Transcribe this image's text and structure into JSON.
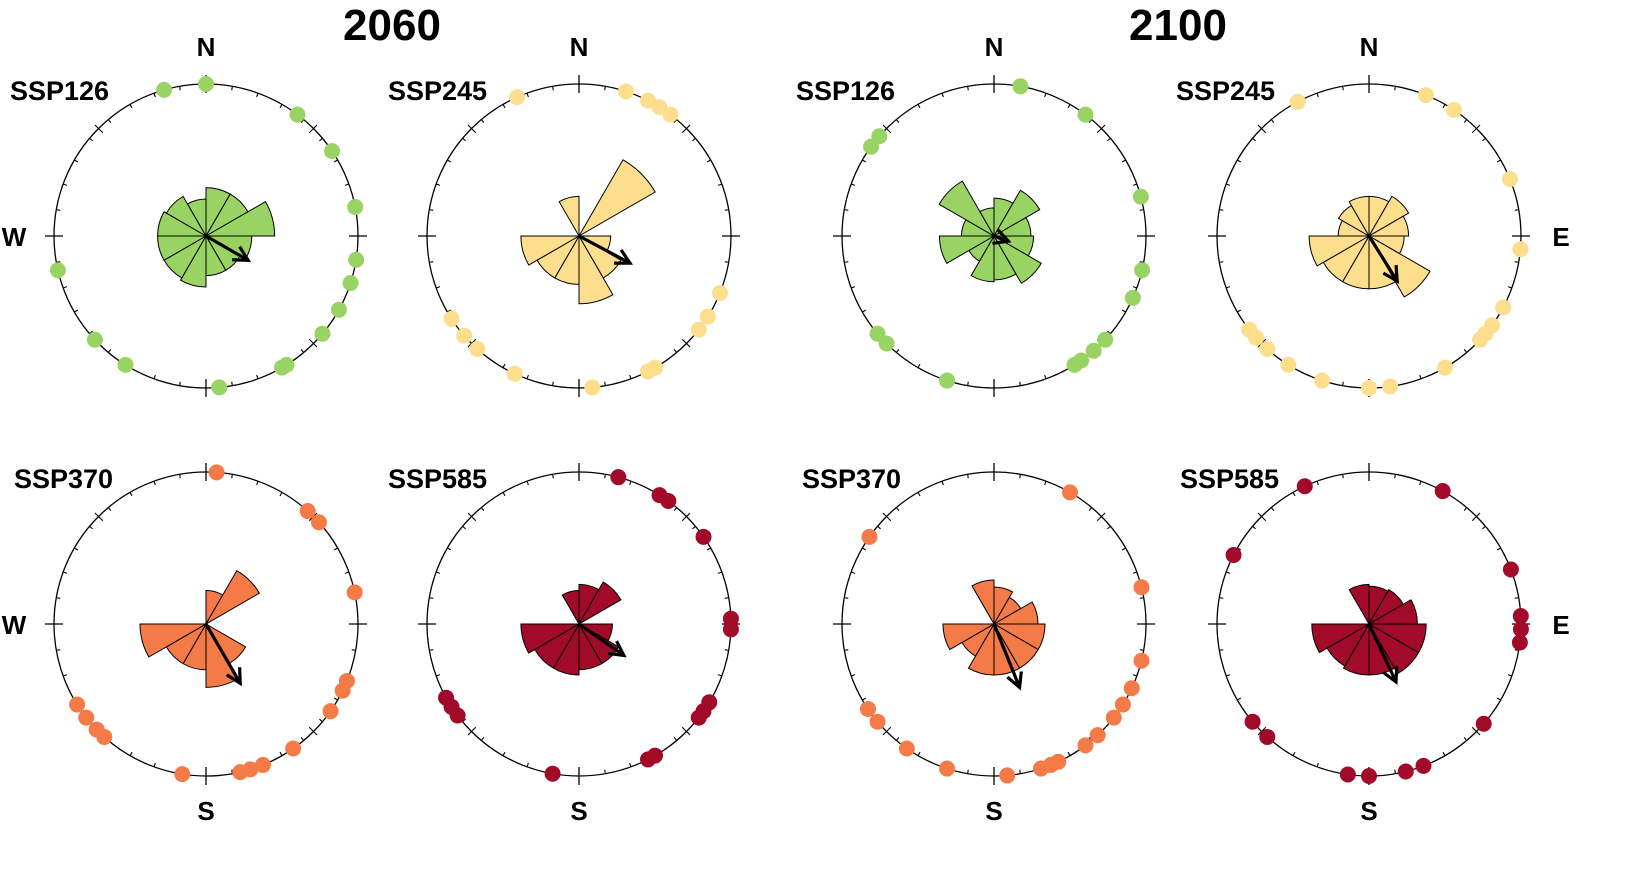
{
  "figure": {
    "titles": [
      "2060",
      "2100"
    ]
  },
  "colors": {
    "SSP126": "#99d363",
    "SSP245": "#fcde8c",
    "SSP370": "#f47b47",
    "SSP585": "#a10a28"
  },
  "chart_data": [
    {
      "type": "circular-rose",
      "year": "2060",
      "scenario": "SSP126",
      "label": "SSP126",
      "color": "#99d363",
      "compass_labels": {
        "N": "N",
        "W": "W"
      },
      "rose": [
        0.55,
        0.55,
        0.78,
        0.52,
        0.45,
        0.45,
        0.58,
        0.55,
        0.55,
        0.55,
        0.52,
        0.42
      ],
      "mean_direction_deg": 120,
      "mean_length": 0.32,
      "points_deg": [
        0,
        344,
        37,
        56,
        79,
        99,
        108,
        119,
        130,
        148,
        150,
        175,
        212,
        227,
        257
      ]
    },
    {
      "type": "circular-rose",
      "year": "2060",
      "scenario": "SSP245",
      "label": "SSP245",
      "color": "#fcde8c",
      "compass_labels": {
        "N": "N"
      },
      "rose": [
        0.0,
        1.0,
        0.0,
        0.36,
        0.55,
        0.77,
        0.55,
        0.55,
        0.66,
        0.0,
        0.0,
        0.45
      ],
      "mean_direction_deg": 118,
      "mean_length": 0.38,
      "points_deg": [
        18,
        27,
        37,
        32,
        336,
        112,
        122,
        128,
        175,
        205,
        222,
        229,
        237,
        150,
        153
      ]
    },
    {
      "type": "circular-rose",
      "year": "2100",
      "scenario": "SSP126",
      "label": "SSP126",
      "color": "#99d363",
      "compass_labels": {
        "N": "N"
      },
      "rose": [
        0.43,
        0.6,
        0.42,
        0.45,
        0.62,
        0.5,
        0.52,
        0.33,
        0.62,
        0.37,
        0.72,
        0.32
      ],
      "mean_direction_deg": 110,
      "mean_length": 0.1,
      "points_deg": [
        10,
        37,
        75,
        103,
        114,
        133,
        139,
        145,
        148,
        198,
        225,
        230,
        306,
        311
      ]
    },
    {
      "type": "circular-rose",
      "year": "2100",
      "scenario": "SSP245",
      "label": "SSP245",
      "color": "#fcde8c",
      "compass_labels": {
        "N": "N",
        "E": "E"
      },
      "rose": [
        0.45,
        0.52,
        0.45,
        0.4,
        0.8,
        0.6,
        0.6,
        0.6,
        0.68,
        0.35,
        0.4,
        0.45
      ],
      "mean_direction_deg": 148,
      "mean_length": 0.35,
      "points_deg": [
        22,
        34,
        68,
        95,
        118,
        126,
        130,
        133,
        150,
        172,
        180,
        198,
        212,
        222,
        228,
        232,
        332
      ]
    },
    {
      "type": "circular-rose",
      "year": "2060",
      "scenario": "SSP370",
      "label": "SSP370",
      "color": "#f47b47",
      "compass_labels": {
        "W": "W",
        "S": "S"
      },
      "rose": [
        0.38,
        0.7,
        0.0,
        0.0,
        0.52,
        0.72,
        0.52,
        0.52,
        0.75,
        0.0,
        0.0,
        0.0
      ],
      "mean_direction_deg": 150,
      "mean_length": 0.45,
      "points_deg": [
        4,
        42,
        48,
        78,
        112,
        116,
        125,
        145,
        158,
        163,
        167,
        189,
        222,
        226,
        232,
        238
      ]
    },
    {
      "type": "circular-rose",
      "year": "2060",
      "scenario": "SSP585",
      "label": "SSP585",
      "color": "#a10a28",
      "compass_labels": {
        "S": "S"
      },
      "rose": [
        0.45,
        0.55,
        0.0,
        0.38,
        0.52,
        0.52,
        0.58,
        0.58,
        0.66,
        0.0,
        0.0,
        0.38
      ],
      "mean_direction_deg": 125,
      "mean_length": 0.36,
      "points_deg": [
        15,
        32,
        36,
        55,
        88,
        92,
        121,
        125,
        128,
        150,
        153,
        190,
        233,
        237,
        241
      ]
    },
    {
      "type": "circular-rose",
      "year": "2100",
      "scenario": "SSP370",
      "label": "SSP370",
      "color": "#f47b47",
      "compass_labels": {
        "S": "S"
      },
      "rose": [
        0.42,
        0.35,
        0.5,
        0.58,
        0.58,
        0.58,
        0.58,
        0.42,
        0.58,
        0.0,
        0.0,
        0.5
      ],
      "mean_direction_deg": 158,
      "mean_length": 0.45,
      "points_deg": [
        30,
        76,
        104,
        115,
        122,
        128,
        137,
        143,
        155,
        158,
        162,
        175,
        198,
        215,
        230,
        236,
        305
      ]
    },
    {
      "type": "circular-rose",
      "year": "2100",
      "scenario": "SSP585",
      "label": "SSP585",
      "color": "#a10a28",
      "compass_labels": {
        "S": "S",
        "E": "E"
      },
      "rose": [
        0.43,
        0.45,
        0.55,
        0.65,
        0.65,
        0.58,
        0.58,
        0.55,
        0.65,
        0.0,
        0.0,
        0.45
      ],
      "mean_direction_deg": 155,
      "mean_length": 0.42,
      "points_deg": [
        29,
        69,
        87,
        92,
        97,
        131,
        159,
        166,
        180,
        188,
        222,
        230,
        297,
        335
      ]
    }
  ]
}
